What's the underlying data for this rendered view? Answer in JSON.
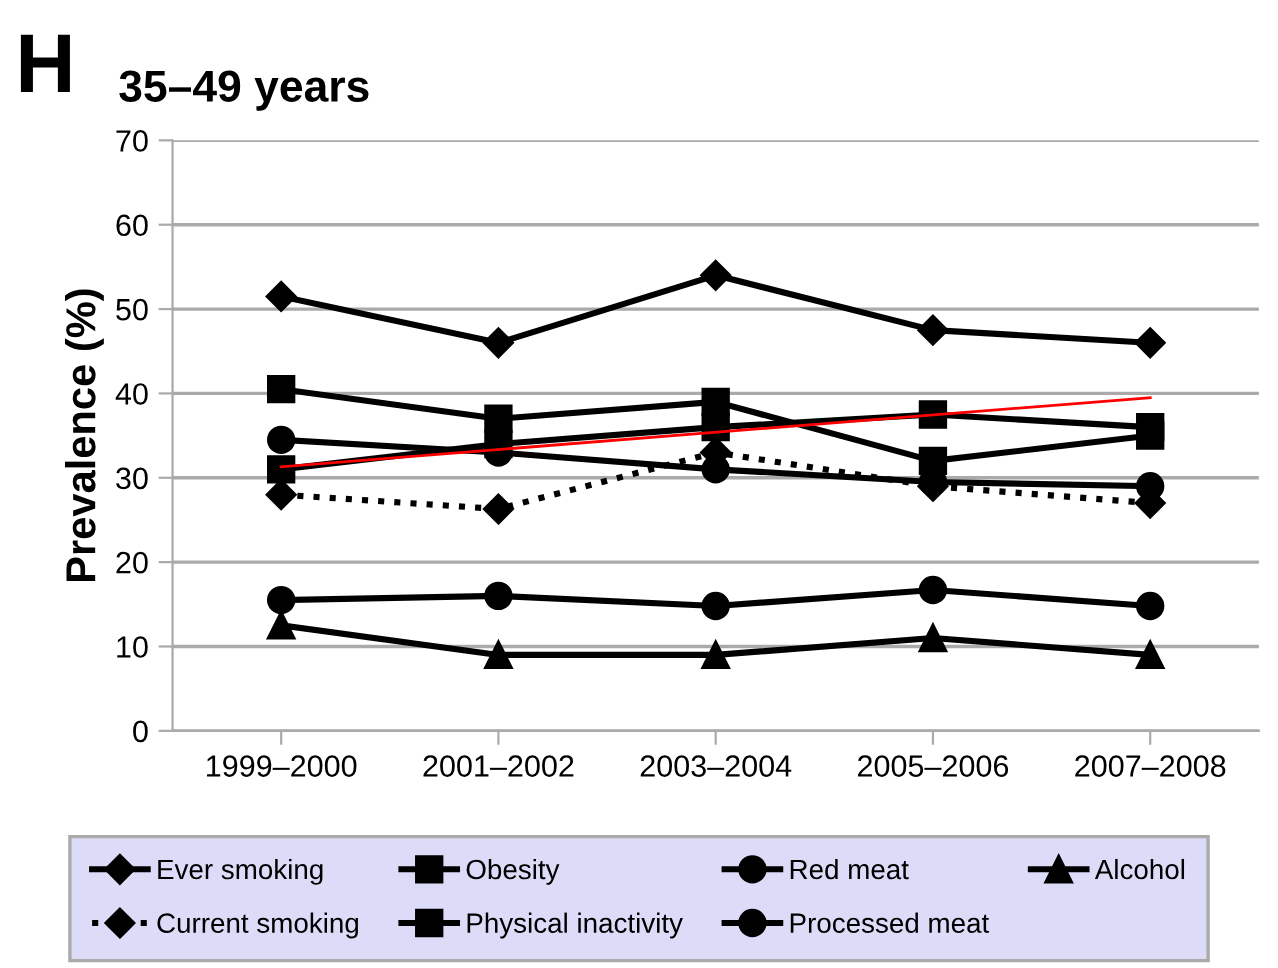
{
  "chart_data": {
    "type": "line",
    "title": "35–49 years",
    "ylabel": "Prevalence (%)",
    "annotations": [
      "H"
    ],
    "categories": [
      "1999–2000",
      "2001–2002",
      "2003–2004",
      "2005–2006",
      "2007–2008"
    ],
    "series": [
      {
        "name": "Ever smoking",
        "color": "#000000",
        "marker": "diamond",
        "line_style": "solid",
        "values": [
          51.5,
          46,
          54,
          47.5,
          46
        ]
      },
      {
        "name": "Obesity",
        "color": "#000000",
        "marker": "square",
        "line_style": "solid",
        "values": [
          31,
          34,
          36,
          37.5,
          36
        ]
      },
      {
        "name": "Red meat",
        "color": "#000000",
        "marker": "circle",
        "line_style": "solid",
        "values": [
          34.5,
          33,
          31,
          29.5,
          29
        ]
      },
      {
        "name": "Alcohol",
        "color": "#000000",
        "marker": "triangle",
        "line_style": "solid",
        "values": [
          12.5,
          9,
          9,
          11,
          9
        ]
      },
      {
        "name": "Current smoking",
        "color": "#000000",
        "marker": "diamond",
        "line_style": "dotted",
        "values": [
          28,
          26.3,
          33,
          29,
          27
        ]
      },
      {
        "name": "Physical inactivity",
        "color": "#000000",
        "marker": "square",
        "line_style": "solid",
        "values": [
          40.5,
          37,
          39,
          32,
          35
        ]
      },
      {
        "name": "Processed meat",
        "color": "#000000",
        "marker": "circle",
        "line_style": "solid",
        "values": [
          15.5,
          16,
          14.8,
          16.7,
          14.8
        ]
      },
      {
        "color": "#ff0000",
        "marker": "none",
        "line_style": "solid",
        "x": [
          "1999–2000",
          "2007–2008"
        ],
        "values": [
          31.3,
          39.5
        ]
      }
    ],
    "ylim": [
      0,
      70
    ],
    "yticks": [
      0,
      10,
      20,
      30,
      40,
      50,
      60,
      70
    ],
    "grid": "y",
    "legend": "bottom"
  }
}
